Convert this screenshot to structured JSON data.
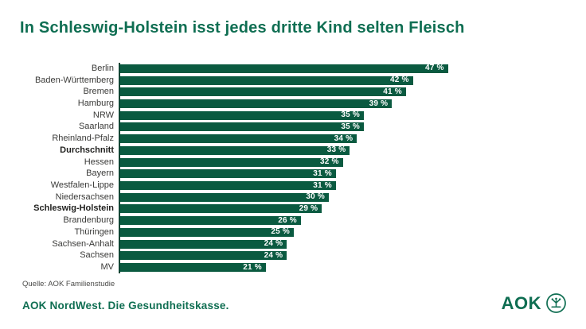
{
  "title": "In Schleswig-Holstein isst jedes dritte Kind selten Fleisch",
  "source": "Quelle: AOK Familienstudie",
  "footer": {
    "claim": "AOK NordWest. Die Gesundheitskasse.",
    "logo_text": "AOK",
    "logo_emblem": "tree-of-life-circle"
  },
  "colors": {
    "bar": "#0a5a40",
    "axis": "#0c4634",
    "brand": "#0f6e52",
    "label": "#3a3a38",
    "label_bold": "#21211f",
    "source": "#4b4b49",
    "value_text": "#ffffff"
  },
  "chart_data": {
    "type": "bar",
    "orientation": "horizontal",
    "title": "In Schleswig-Holstein isst jedes dritte Kind selten Fleisch",
    "xlabel": "",
    "ylabel": "",
    "xlim": [
      0,
      50
    ],
    "grid": false,
    "legend": false,
    "unit": "%",
    "categories": [
      "Berlin",
      "Baden-Württemberg",
      "Bremen",
      "Hamburg",
      "NRW",
      "Saarland",
      "Rheinland-Pfalz",
      "Durchschnitt",
      "Hessen",
      "Bayern",
      "Westfalen-Lippe",
      "Niedersachsen",
      "Schleswig-Holstein",
      "Brandenburg",
      "Thüringen",
      "Sachsen-Anhalt",
      "Sachsen",
      "MV"
    ],
    "values": [
      47,
      42,
      41,
      39,
      35,
      35,
      34,
      33,
      32,
      31,
      31,
      30,
      29,
      26,
      25,
      24,
      24,
      21
    ],
    "value_labels": [
      "47 %",
      "42 %",
      "41 %",
      "39 %",
      "35 %",
      "35 %",
      "34 %",
      "33 %",
      "32 %",
      "31 %",
      "31 %",
      "30 %",
      "29 %",
      "26 %",
      "25 %",
      "24 %",
      "24 %",
      "21 %"
    ],
    "bold_categories": [
      "Durchschnitt",
      "Schleswig-Holstein"
    ]
  }
}
